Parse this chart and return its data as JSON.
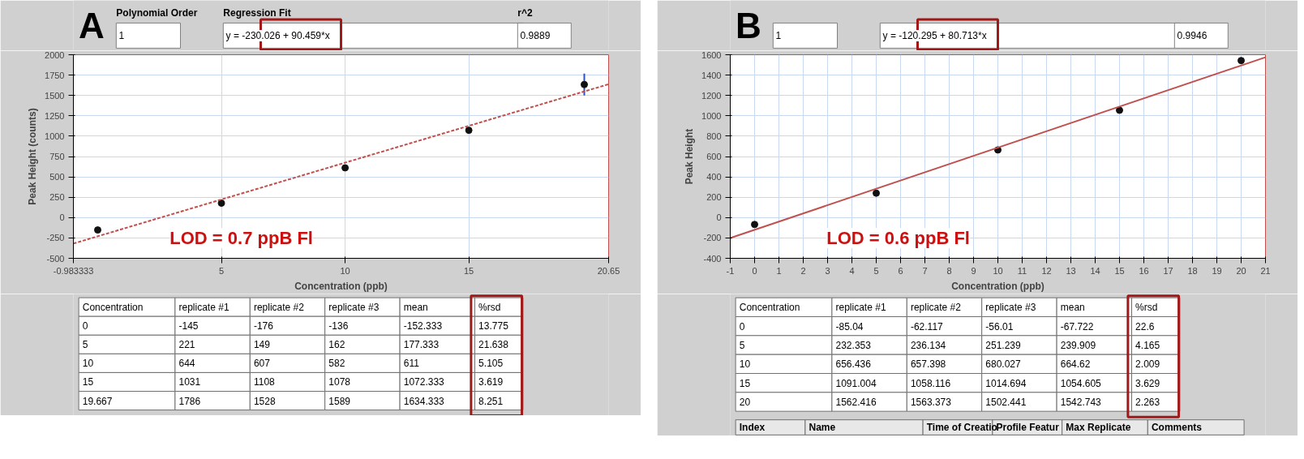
{
  "chart_data": [
    {
      "type": "scatter",
      "title": "A",
      "xlabel": "Concentration (ppb)",
      "ylabel": "Peak Height (counts)",
      "xlim": [
        -0.983333,
        20.65
      ],
      "xticks": [
        -0.983333,
        5,
        10,
        15,
        20.65
      ],
      "ylim": [
        -500,
        2000
      ],
      "yticks": [
        -500,
        -250,
        0,
        250,
        500,
        750,
        1000,
        1250,
        1500,
        1750,
        2000
      ],
      "grid": true,
      "series": [
        {
          "marker": "circle",
          "color": "#111111",
          "x": [
            0,
            5,
            10,
            15,
            19.667
          ],
          "values": [
            -152.333,
            177.333,
            611,
            1072.333,
            1634.333
          ],
          "errors": [
            null,
            null,
            null,
            null,
            135
          ]
        },
        {
          "type": "line",
          "marker": "none",
          "color": "#c0504d",
          "line_style": "dashed",
          "x": [
            -0.983333,
            20.65
          ],
          "values": [
            -319,
            1638
          ]
        }
      ],
      "annotations": [
        "Polynomial Order",
        "Regression Fit",
        "r^2",
        "1",
        "y = -230.026 + 90.459*x",
        "0.9889",
        "LOD = 0.7 ppB Fl",
        "Concentration",
        "replicate #1",
        "replicate #2",
        "replicate #3",
        "mean",
        "%rsd",
        "0",
        "-145",
        "-176",
        "-136",
        "-152.333",
        "13.775",
        "5",
        "221",
        "149",
        "162",
        "177.333",
        "21.638",
        "10",
        "644",
        "607",
        "582",
        "611",
        "5.105",
        "15",
        "1031",
        "1108",
        "1078",
        "1072.333",
        "3.619",
        "19.667",
        "1786",
        "1528",
        "1589",
        "1634.333",
        "8.251"
      ]
    },
    {
      "type": "scatter",
      "title": "B",
      "xlabel": "Concentration (ppb)",
      "ylabel": "Peak Height",
      "xlim": [
        -1,
        21
      ],
      "xticks": [
        -1,
        0,
        1,
        2,
        3,
        4,
        5,
        6,
        7,
        8,
        9,
        10,
        11,
        12,
        13,
        14,
        15,
        16,
        17,
        18,
        19,
        20,
        21
      ],
      "ylim": [
        -400,
        1600
      ],
      "yticks": [
        -400,
        -200,
        0,
        200,
        400,
        600,
        800,
        1000,
        1200,
        1400,
        1600
      ],
      "grid": true,
      "series": [
        {
          "marker": "circle",
          "color": "#111111",
          "x": [
            0,
            5,
            10,
            15,
            20
          ],
          "values": [
            -67.722,
            239.909,
            664.62,
            1054.605,
            1542.743
          ]
        },
        {
          "type": "line",
          "marker": "none",
          "color": "#c0504d",
          "line_style": "solid",
          "x": [
            -1,
            21
          ],
          "values": [
            -201,
            1575
          ]
        }
      ],
      "annotations": [
        "1",
        "y = -120.295 + 80.713*x",
        "0.9946",
        "LOD = 0.6 ppB Fl",
        "Concentration",
        "replicate #1",
        "replicate #2",
        "replicate #3",
        "mean",
        "%rsd",
        "0",
        "-85.04",
        "-62.117",
        "-56.01",
        "-67.722",
        "22.6",
        "5",
        "232.353",
        "236.134",
        "251.239",
        "239.909",
        "4.165",
        "10",
        "656.436",
        "657.398",
        "680.027",
        "664.62",
        "2.009",
        "15",
        "1091.004",
        "1058.116",
        "1014.694",
        "1054.605",
        "3.629",
        "20",
        "1562.416",
        "1563.373",
        "1502.441",
        "1542.743",
        "2.263",
        "Index",
        "Name",
        "Time of Creatio",
        "Profile Featur",
        "Max Replicate",
        "Comments"
      ]
    }
  ]
}
